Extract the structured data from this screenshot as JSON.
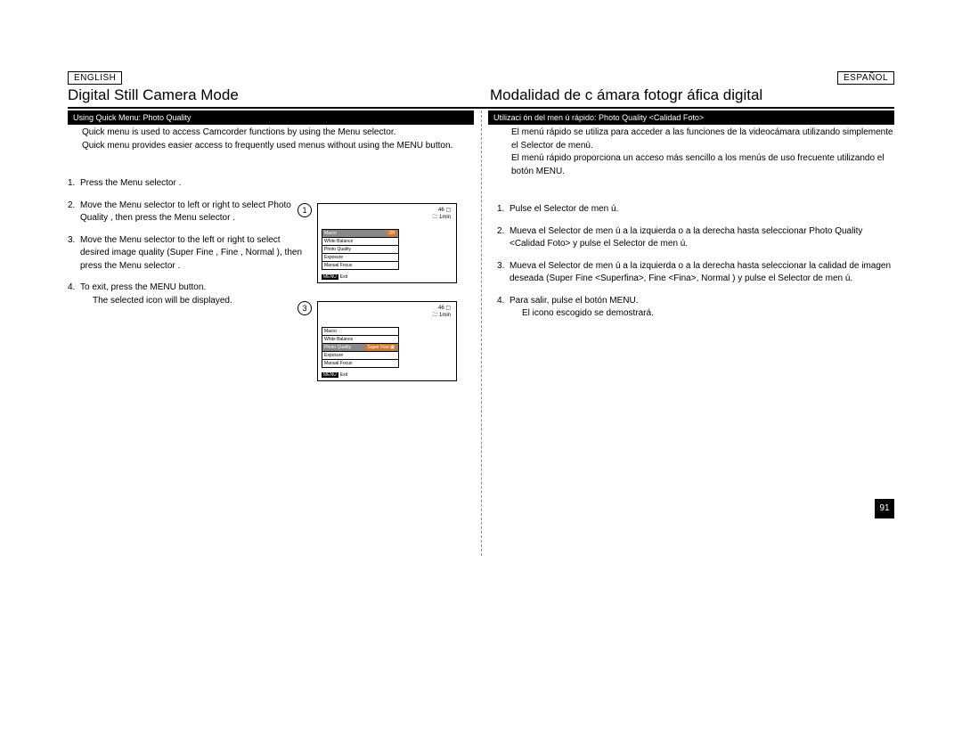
{
  "lang_en": "ENGLISH",
  "lang_es": "ESPAÑOL",
  "title_en": "Digital Still Camera Mode",
  "title_es": "Modalidad de c ámara fotogr áfica digital",
  "subtitle_en": "Using Quick Menu: Photo Quality",
  "subtitle_es": "Utilizaci ón del men ú rápido: Photo Quality <Calidad Foto>",
  "intro_en_1": "Quick menu is used to access Camcorder functions by using the Menu selector.",
  "intro_en_2": "Quick menu provides easier access to frequently used menus without using the MENU button.",
  "intro_es_1": "El menú rápido se utiliza para acceder a las funciones de la videocámara utilizando simplemente el Selector de menú.",
  "intro_es_2": "El menú rápido proporciona un acceso más sencillo a los menús de uso frecuente utilizando el botón MENU.",
  "steps_en": {
    "n1": "1.",
    "s1": "Press the Menu selector .",
    "n2": "2.",
    "s2": "Move the Menu selector  to left or right to select Photo Quality , then press the Menu selector .",
    "n3": "3.",
    "s3": "Move the Menu selector  to the left or right to select desired image quality (Super Fine , Fine , Normal ), then press the Menu selector .",
    "n4": "4.",
    "s4": "To exit, press the MENU button.",
    "s4b": "The selected icon will be displayed."
  },
  "steps_es": {
    "n1": "1.",
    "s1": "Pulse el Selector de men ú.",
    "n2": "2.",
    "s2": "Mueva el Selector de men ú a la izquierda o a la derecha hasta seleccionar Photo Quality <Calidad Foto>  y pulse el Selector de men ú.",
    "n3": "3.",
    "s3": "Mueva el Selector de men ú a la izquierda o a la derecha hasta seleccionar la calidad de imagen deseada (Super Fine <Superfina>, Fine <Fina>, Normal ) y pulse el Selector de men ú.",
    "n4": "4.",
    "s4": "Para salir, pulse el botón MENU.",
    "s4b": "El icono escogido se demostrará."
  },
  "panel": {
    "circ1": "1",
    "circ3": "3",
    "status_count": "46 ▢",
    "status_time": "🗀  1min",
    "menu1": {
      "r1": "Macro",
      "v1": "Off",
      "r2": "White Balance",
      "r3": "Photo Quality",
      "r4": "Exposure",
      "r5": "Manual Focus"
    },
    "menu2": {
      "r1": "Macro",
      "r2": "White Balance",
      "r3": "Photo Quality",
      "v3": "Super Fine ▣",
      "r4": "Exposure",
      "r5": "Manual Focus"
    },
    "exit_tag": "MENU",
    "exit_txt": "Exit"
  },
  "page_number": "91"
}
